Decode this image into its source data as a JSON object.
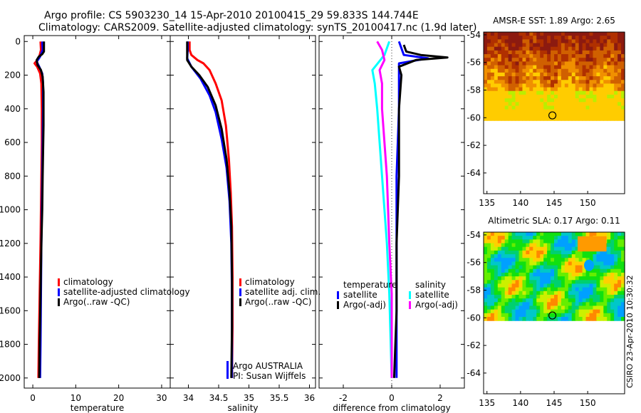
{
  "header": {
    "line1": "Argo profile: CS 5903230_14 15-Apr-2010 20100415_29 59.833S 144.744E",
    "line2": "Climatology: CARS2009. Satellite-adjusted climatology: synTS_20100417.nc (1.9d later)"
  },
  "credit": "CSIRO 23-Apr-2010 10:30:32",
  "colors": {
    "climatology": "#ff0000",
    "satellite": "#0000ff",
    "argo": "#000000",
    "salinity_satellite": "#00ffff",
    "salinity_argo": "#ff00ff"
  },
  "chart_data": [
    {
      "id": "temperature",
      "type": "line",
      "xlabel": "temperature",
      "xlim": [
        -2,
        32
      ],
      "ylim": [
        2060,
        -35
      ],
      "xticks": [
        0,
        10,
        20,
        30
      ],
      "yticks": [
        0,
        200,
        400,
        600,
        800,
        1000,
        1200,
        1400,
        1600,
        1800,
        2000
      ],
      "legend": {
        "position": "lower-middle",
        "entries": [
          {
            "label": "climatology",
            "color": "#ff0000"
          },
          {
            "label": "satellite-adjusted climatology",
            "color": "#0000ff"
          },
          {
            "label": "Argo(..raw -QC)",
            "color": "#000000"
          }
        ]
      },
      "series": [
        {
          "name": "climatology",
          "color": "#ff0000",
          "points": [
            [
              1.8,
              0
            ],
            [
              1.9,
              50
            ],
            [
              1.4,
              100
            ],
            [
              0.4,
              130
            ],
            [
              1.0,
              150
            ],
            [
              1.7,
              190
            ],
            [
              2.0,
              250
            ],
            [
              2.1,
              400
            ],
            [
              2.1,
              600
            ],
            [
              2.0,
              800
            ],
            [
              1.9,
              1000
            ],
            [
              1.8,
              1200
            ],
            [
              1.6,
              1500
            ],
            [
              1.4,
              1800
            ],
            [
              1.3,
              2000
            ]
          ]
        },
        {
          "name": "satellite-adjusted climatology",
          "color": "#0000ff",
          "points": [
            [
              2.2,
              0
            ],
            [
              2.3,
              50
            ],
            [
              1.7,
              90
            ],
            [
              0.9,
              120
            ],
            [
              1.5,
              150
            ],
            [
              2.2,
              190
            ],
            [
              2.4,
              250
            ],
            [
              2.4,
              400
            ],
            [
              2.3,
              600
            ],
            [
              2.2,
              800
            ],
            [
              2.1,
              1000
            ],
            [
              2.0,
              1200
            ],
            [
              1.9,
              1500
            ],
            [
              1.8,
              1800
            ],
            [
              1.7,
              2000
            ]
          ]
        },
        {
          "name": "Argo(..raw -QC)",
          "color": "#000000",
          "points": [
            [
              2.6,
              0
            ],
            [
              2.6,
              60
            ],
            [
              2.2,
              75
            ],
            [
              1.4,
              90
            ],
            [
              0.9,
              110
            ],
            [
              1.1,
              140
            ],
            [
              1.9,
              170
            ],
            [
              2.3,
              210
            ],
            [
              2.5,
              300
            ],
            [
              2.5,
              500
            ],
            [
              2.3,
              800
            ],
            [
              2.2,
              1000
            ],
            [
              2.0,
              1200
            ],
            [
              1.8,
              1500
            ],
            [
              1.6,
              1800
            ],
            [
              1.5,
              2000
            ]
          ]
        }
      ]
    },
    {
      "id": "salinity",
      "type": "line",
      "xlabel": "salinity",
      "xlim": [
        33.7,
        36.1
      ],
      "ylim": [
        2060,
        -35
      ],
      "xticks": [
        34,
        34.5,
        35,
        35.5,
        36
      ],
      "yticks": [
        0,
        200,
        400,
        600,
        800,
        1000,
        1200,
        1400,
        1600,
        1800,
        2000
      ],
      "legend": {
        "position": "lower-middle",
        "entries": [
          {
            "label": "climatology",
            "color": "#ff0000"
          },
          {
            "label": "satellite adj. clim.",
            "color": "#0000ff"
          },
          {
            "label": "Argo(..raw -QC)",
            "color": "#000000"
          }
        ]
      },
      "annotation": [
        "Argo AUSTRALIA",
        "PI: Susan Wijffels"
      ],
      "series": [
        {
          "name": "climatology",
          "color": "#ff0000",
          "points": [
            [
              34.02,
              0
            ],
            [
              34.02,
              50
            ],
            [
              34.05,
              80
            ],
            [
              34.15,
              110
            ],
            [
              34.25,
              130
            ],
            [
              34.35,
              170
            ],
            [
              34.45,
              250
            ],
            [
              34.55,
              350
            ],
            [
              34.62,
              500
            ],
            [
              34.67,
              700
            ],
            [
              34.7,
              900
            ],
            [
              34.72,
              1100
            ],
            [
              34.73,
              1400
            ],
            [
              34.73,
              1700
            ],
            [
              34.72,
              2000
            ]
          ]
        },
        {
          "name": "satellite adj. clim.",
          "color": "#0000ff",
          "points": [
            [
              33.99,
              0
            ],
            [
              33.99,
              50
            ],
            [
              33.98,
              100
            ],
            [
              34.05,
              150
            ],
            [
              34.2,
              220
            ],
            [
              34.35,
              320
            ],
            [
              34.45,
              420
            ],
            [
              34.55,
              580
            ],
            [
              34.63,
              750
            ],
            [
              34.68,
              950
            ],
            [
              34.71,
              1200
            ],
            [
              34.72,
              1500
            ],
            [
              34.72,
              1800
            ],
            [
              34.72,
              2000
            ]
          ]
        },
        {
          "name": "Argo(..raw -QC)",
          "color": "#000000",
          "points": [
            [
              33.98,
              0
            ],
            [
              33.98,
              60
            ],
            [
              33.98,
              110
            ],
            [
              34.05,
              150
            ],
            [
              34.18,
              200
            ],
            [
              34.32,
              270
            ],
            [
              34.45,
              380
            ],
            [
              34.55,
              520
            ],
            [
              34.63,
              700
            ],
            [
              34.68,
              900
            ],
            [
              34.71,
              1100
            ],
            [
              34.72,
              1400
            ],
            [
              34.72,
              1700
            ],
            [
              34.71,
              2000
            ]
          ]
        }
      ]
    },
    {
      "id": "difference",
      "type": "line",
      "xlabel": "difference from climatology",
      "xlim": [
        -3.0,
        3.0
      ],
      "ylim": [
        2060,
        -35
      ],
      "xticks": [
        -2,
        0,
        2
      ],
      "yticks": [
        0,
        200,
        400,
        600,
        800,
        1000,
        1200,
        1400,
        1600,
        1800,
        2000
      ],
      "zero_line": true,
      "legend": {
        "position": "lower-middle",
        "groups": [
          {
            "title": "temperature",
            "entries": [
              {
                "label": "satellite",
                "color": "#0000ff"
              },
              {
                "label": "Argo(-adj)",
                "color": "#000000"
              }
            ]
          },
          {
            "title": "salinity",
            "entries": [
              {
                "label": "satellite",
                "color": "#00ffff"
              },
              {
                "label": "Argo(-adj)",
                "color": "#ff00ff"
              }
            ]
          }
        ]
      },
      "series": [
        {
          "name": "temperature satellite",
          "color": "#0000ff",
          "points": [
            [
              0.3,
              0
            ],
            [
              0.4,
              40
            ],
            [
              0.5,
              80
            ],
            [
              1.5,
              100
            ],
            [
              0.3,
              130
            ],
            [
              0.3,
              200
            ],
            [
              0.3,
              400
            ],
            [
              0.2,
              800
            ],
            [
              0.2,
              1200
            ],
            [
              0.2,
              1600
            ],
            [
              0.2,
              2000
            ]
          ]
        },
        {
          "name": "temperature Argo(-adj)",
          "color": "#000000",
          "points": [
            [
              0.5,
              20
            ],
            [
              0.6,
              60
            ],
            [
              1.2,
              80
            ],
            [
              2.3,
              95
            ],
            [
              1.0,
              110
            ],
            [
              0.3,
              150
            ],
            [
              0.4,
              200
            ],
            [
              0.3,
              400
            ],
            [
              0.3,
              800
            ],
            [
              0.2,
              1200
            ],
            [
              0.2,
              1600
            ],
            [
              0.1,
              2000
            ]
          ]
        },
        {
          "name": "salinity satellite",
          "color": "#00ffff",
          "points": [
            [
              -0.1,
              0
            ],
            [
              -0.3,
              80
            ],
            [
              -0.8,
              170
            ],
            [
              -0.7,
              250
            ],
            [
              -0.6,
              400
            ],
            [
              -0.5,
              600
            ],
            [
              -0.4,
              800
            ],
            [
              -0.3,
              1000
            ],
            [
              -0.2,
              1200
            ],
            [
              -0.1,
              1500
            ],
            [
              0.0,
              2000
            ]
          ]
        },
        {
          "name": "salinity Argo(-adj)",
          "color": "#ff00ff",
          "points": [
            [
              -0.6,
              0
            ],
            [
              -0.4,
              50
            ],
            [
              -0.3,
              110
            ],
            [
              -0.5,
              170
            ],
            [
              -0.4,
              250
            ],
            [
              -0.4,
              400
            ],
            [
              -0.3,
              600
            ],
            [
              -0.2,
              800
            ],
            [
              -0.15,
              1000
            ],
            [
              -0.1,
              1200
            ],
            [
              0.0,
              1500
            ],
            [
              0.0,
              2000
            ]
          ]
        }
      ]
    },
    {
      "id": "sst_map",
      "type": "heatmap",
      "title": "AMSR-E SST: 1.89 Argo: 2.65",
      "xlim": [
        134.5,
        155.5
      ],
      "ylim": [
        -65.5,
        -53.8
      ],
      "xticks": [
        135,
        140,
        145,
        150
      ],
      "yticks": [
        -54,
        -56,
        -58,
        -60,
        -62,
        -64
      ],
      "data_lat_range": [
        -60.2,
        -53.8
      ],
      "argo_position": {
        "lon": 144.744,
        "lat": -59.833
      },
      "palette": [
        "#00b000",
        "#44dd00",
        "#bbee00",
        "#ffcc00",
        "#f09000",
        "#d06000",
        "#b03000",
        "#8c1a10"
      ]
    },
    {
      "id": "sla_map",
      "type": "heatmap",
      "title": "Altimetric SLA: 0.17 Argo: 0.11",
      "xlim": [
        134.5,
        155.5
      ],
      "ylim": [
        -65.5,
        -53.8
      ],
      "xticks": [
        135,
        140,
        145,
        150
      ],
      "yticks": [
        -54,
        -56,
        -58,
        -60,
        -62,
        -64
      ],
      "data_lat_range": [
        -60.2,
        -53.8
      ],
      "argo_position": {
        "lon": 144.744,
        "lat": -59.833
      },
      "palette": [
        "#00a0ff",
        "#00c8c8",
        "#00d070",
        "#10e010",
        "#66ee00",
        "#ccf000",
        "#ffd000",
        "#ff8800"
      ]
    }
  ]
}
